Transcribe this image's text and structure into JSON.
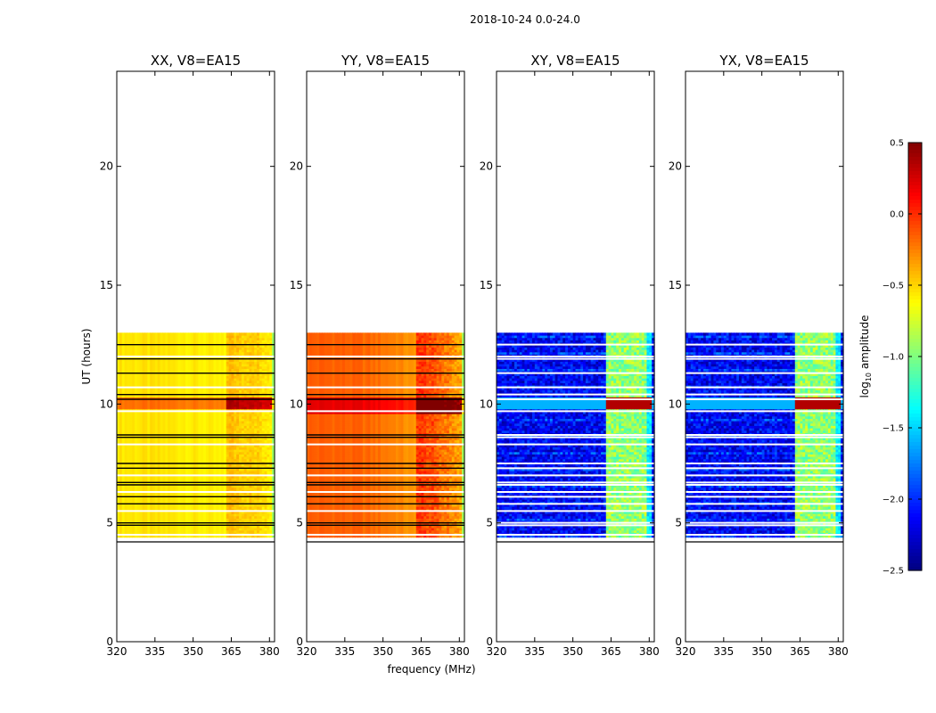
{
  "suptitle": "2018-10-24 0.0-24.0",
  "xlabel": "frequency (MHz)",
  "ylabel": "UT (hours)",
  "colorbar_label": "log10 amplitude",
  "chart_data": {
    "type": "heatmap",
    "panels": [
      {
        "title": "XX, V8=EA15",
        "kind": "parallel",
        "base": [
          -0.55,
          -0.75
        ],
        "band_boost": 0.25,
        "flare_rows": [
          9.75,
          10.2
        ]
      },
      {
        "title": "YY, V8=EA15",
        "kind": "parallel",
        "base": [
          -0.15,
          -0.75
        ],
        "band_boost": 0.45,
        "flare_rows": [
          9.6,
          10.2
        ]
      },
      {
        "title": "XY, V8=EA15",
        "kind": "cross",
        "base": [
          -2.4,
          -2.0
        ],
        "band_boost": 1.4,
        "flare_rows": [
          9.75,
          10.2
        ]
      },
      {
        "title": "YX, V8=EA15",
        "kind": "cross",
        "base": [
          -2.4,
          -2.0
        ],
        "band_boost": 1.4,
        "flare_rows": [
          9.75,
          10.2
        ]
      }
    ],
    "xlim": [
      320,
      382
    ],
    "xticks": [
      320,
      335,
      350,
      365,
      380
    ],
    "ylim": [
      0,
      24
    ],
    "yticks": [
      0,
      5,
      10,
      15,
      20
    ],
    "data_time_range": [
      4.4,
      13.0
    ],
    "rfi_band_mhz": [
      363,
      381
    ],
    "rfi_subbands_mhz": [
      [
        363.0,
        366.5
      ],
      [
        367.0,
        370.5
      ],
      [
        371.0,
        374.5
      ],
      [
        375.0,
        378.5
      ]
    ],
    "flagged_rows_ut": [
      4.2,
      4.5,
      4.9,
      5.0,
      5.5,
      5.8,
      6.1,
      6.3,
      6.6,
      6.7,
      7.0,
      7.3,
      7.5,
      8.3,
      8.6,
      8.7,
      9.7,
      10.2,
      10.4,
      10.7,
      11.3,
      11.9,
      12.0,
      12.5
    ],
    "colorbar": {
      "range": [
        -2.5,
        0.5
      ],
      "ticks": [
        0.5,
        0.0,
        -0.5,
        -1.0,
        -1.5,
        -2.0,
        -2.5
      ],
      "tick_labels": [
        "0.5",
        "0.0",
        "−0.5",
        "−1.0",
        "−1.5",
        "−2.0",
        "−2.5"
      ],
      "colormap": "jet"
    }
  }
}
